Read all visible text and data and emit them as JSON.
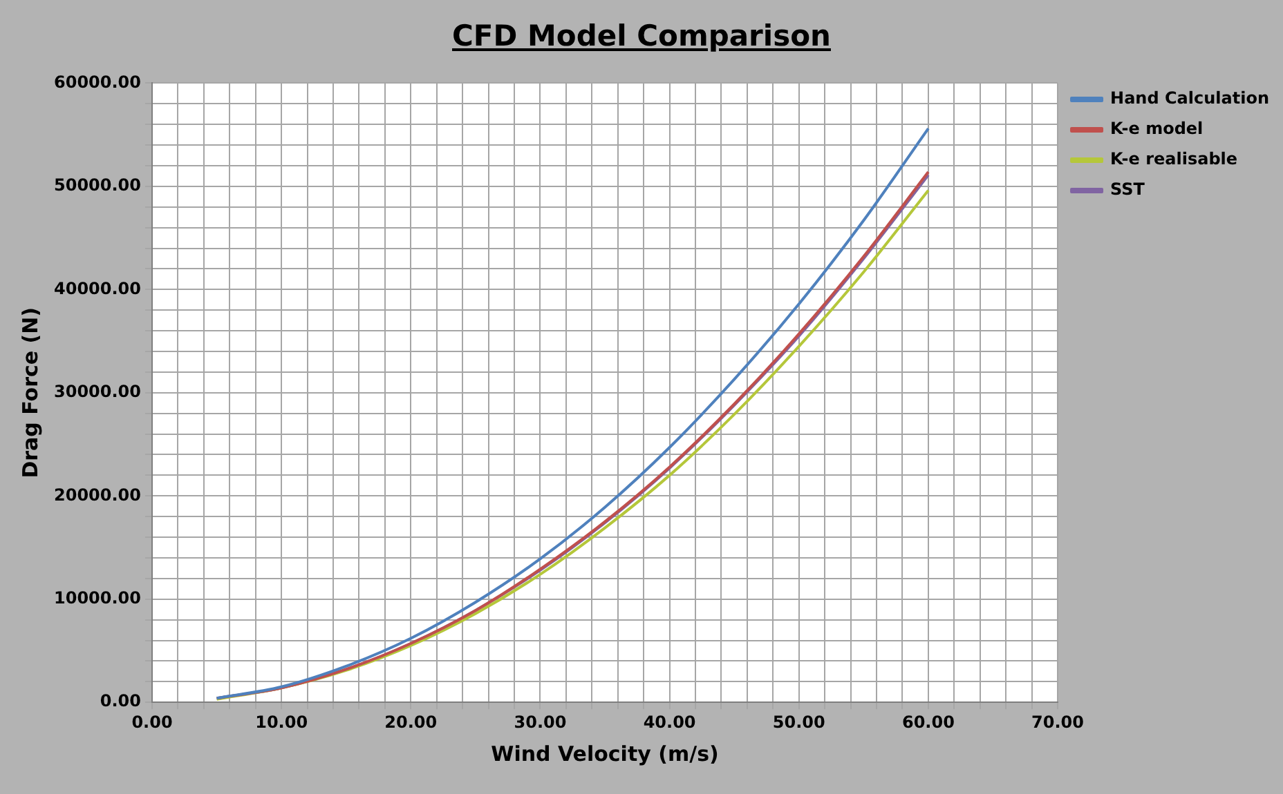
{
  "chart_data": {
    "type": "line",
    "title": "CFD Model Comparison",
    "xlabel": "Wind Velocity (m/s)",
    "ylabel": "Drag Force (N)",
    "x": [
      5,
      10,
      15,
      20,
      25,
      30,
      35,
      40,
      45,
      50,
      55,
      60
    ],
    "series": [
      {
        "name": "Hand Calculation",
        "color": "#4f81bd",
        "values": [
          400,
          1500,
          3500,
          6200,
          9700,
          13900,
          18900,
          24700,
          31300,
          38600,
          46700,
          55600
        ]
      },
      {
        "name": "K-e model",
        "color": "#c0504d",
        "values": [
          400,
          1400,
          3200,
          5700,
          8900,
          12900,
          17500,
          22800,
          28900,
          35700,
          43200,
          51400
        ]
      },
      {
        "name": "K-e realisable",
        "color": "#b5c73a",
        "values": [
          300,
          1400,
          3100,
          5500,
          8600,
          12400,
          16900,
          22000,
          27900,
          34500,
          41700,
          49600
        ]
      },
      {
        "name": "SST",
        "color": "#8064a2",
        "values": [
          400,
          1400,
          3200,
          5700,
          8900,
          12800,
          17400,
          22700,
          28800,
          35500,
          43000,
          51100
        ]
      }
    ],
    "xlim": [
      0,
      70
    ],
    "xticks": [
      {
        "value": 0,
        "label": "0.00"
      },
      {
        "value": 2,
        "label": null
      },
      {
        "value": 4,
        "label": null
      },
      {
        "value": 6,
        "label": null
      },
      {
        "value": 8,
        "label": null
      },
      {
        "value": 10,
        "label": "10.00"
      },
      {
        "value": 12,
        "label": null
      },
      {
        "value": 14,
        "label": null
      },
      {
        "value": 16,
        "label": null
      },
      {
        "value": 18,
        "label": null
      },
      {
        "value": 20,
        "label": "20.00"
      },
      {
        "value": 22,
        "label": null
      },
      {
        "value": 24,
        "label": null
      },
      {
        "value": 26,
        "label": null
      },
      {
        "value": 28,
        "label": null
      },
      {
        "value": 30,
        "label": "30.00"
      },
      {
        "value": 32,
        "label": null
      },
      {
        "value": 34,
        "label": null
      },
      {
        "value": 36,
        "label": null
      },
      {
        "value": 38,
        "label": null
      },
      {
        "value": 40,
        "label": "40.00"
      },
      {
        "value": 42,
        "label": null
      },
      {
        "value": 44,
        "label": null
      },
      {
        "value": 46,
        "label": null
      },
      {
        "value": 48,
        "label": null
      },
      {
        "value": 50,
        "label": "50.00"
      },
      {
        "value": 52,
        "label": null
      },
      {
        "value": 54,
        "label": null
      },
      {
        "value": 56,
        "label": null
      },
      {
        "value": 58,
        "label": null
      },
      {
        "value": 60,
        "label": "60.00"
      },
      {
        "value": 62,
        "label": null
      },
      {
        "value": 64,
        "label": null
      },
      {
        "value": 66,
        "label": null
      },
      {
        "value": 68,
        "label": null
      },
      {
        "value": 70,
        "label": "70.00"
      }
    ],
    "ylim": [
      0,
      60000
    ],
    "yticks": [
      {
        "value": 0,
        "label": "0.00"
      },
      {
        "value": 2000,
        "label": null
      },
      {
        "value": 4000,
        "label": null
      },
      {
        "value": 6000,
        "label": null
      },
      {
        "value": 8000,
        "label": null
      },
      {
        "value": 10000,
        "label": "10000.00"
      },
      {
        "value": 12000,
        "label": null
      },
      {
        "value": 14000,
        "label": null
      },
      {
        "value": 16000,
        "label": null
      },
      {
        "value": 18000,
        "label": null
      },
      {
        "value": 20000,
        "label": "20000.00"
      },
      {
        "value": 22000,
        "label": null
      },
      {
        "value": 24000,
        "label": null
      },
      {
        "value": 26000,
        "label": null
      },
      {
        "value": 28000,
        "label": null
      },
      {
        "value": 30000,
        "label": "30000.00"
      },
      {
        "value": 32000,
        "label": null
      },
      {
        "value": 34000,
        "label": null
      },
      {
        "value": 36000,
        "label": null
      },
      {
        "value": 38000,
        "label": null
      },
      {
        "value": 40000,
        "label": "40000.00"
      },
      {
        "value": 42000,
        "label": null
      },
      {
        "value": 44000,
        "label": null
      },
      {
        "value": 46000,
        "label": null
      },
      {
        "value": 48000,
        "label": null
      },
      {
        "value": 50000,
        "label": "50000.00"
      },
      {
        "value": 52000,
        "label": null
      },
      {
        "value": 54000,
        "label": null
      },
      {
        "value": 56000,
        "label": null
      },
      {
        "value": 58000,
        "label": null
      },
      {
        "value": 60000,
        "label": "60000.00"
      }
    ],
    "grid": true,
    "legend": "right",
    "marker": "none",
    "line_style": "solid"
  }
}
